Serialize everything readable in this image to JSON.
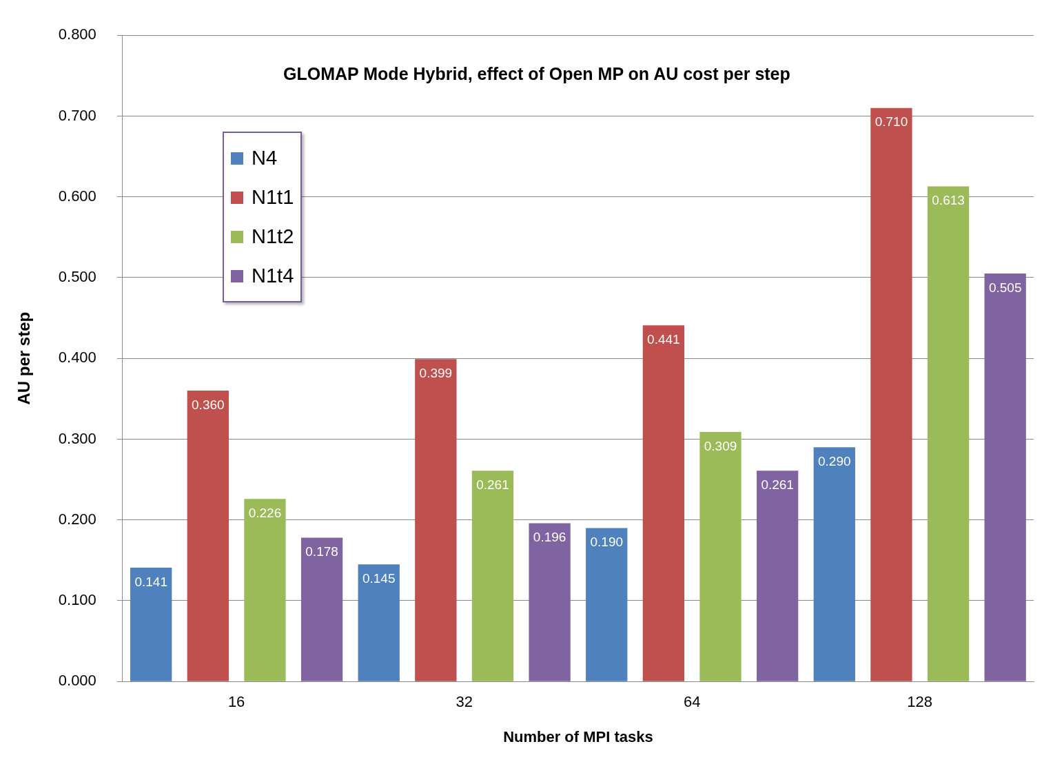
{
  "chart_data": {
    "type": "bar",
    "title": "GLOMAP Mode Hybrid, effect of Open MP on AU cost per step",
    "xlabel": "Number of MPI tasks",
    "ylabel": "AU per step",
    "categories": [
      "16",
      "32",
      "64",
      "128"
    ],
    "series": [
      {
        "name": "N4",
        "color": "#4f81bd",
        "values": [
          0.141,
          0.145,
          0.19,
          0.29
        ],
        "value_labels": [
          "0.141",
          "0.145",
          "0.190",
          "0.290"
        ]
      },
      {
        "name": "N1t1",
        "color": "#c0504d",
        "values": [
          0.36,
          0.399,
          0.441,
          0.71
        ],
        "value_labels": [
          "0.360",
          "0.399",
          "0.441",
          "0.710"
        ]
      },
      {
        "name": "N1t2",
        "color": "#9bbb59",
        "values": [
          0.226,
          0.261,
          0.309,
          0.613
        ],
        "value_labels": [
          "0.226",
          "0.261",
          "0.309",
          "0.613"
        ]
      },
      {
        "name": "N1t4",
        "color": "#8064a2",
        "values": [
          0.178,
          0.196,
          0.261,
          0.505
        ],
        "value_labels": [
          "0.178",
          "0.196",
          "0.261",
          "0.505"
        ]
      }
    ],
    "ylim": [
      0,
      0.8
    ],
    "yticks": [
      {
        "value": 0,
        "label": "0.000"
      },
      {
        "value": 0.1,
        "label": "0.100"
      },
      {
        "value": 0.2,
        "label": "0.200"
      },
      {
        "value": 0.3,
        "label": "0.300"
      },
      {
        "value": 0.4,
        "label": "0.400"
      },
      {
        "value": 0.5,
        "label": "0.500"
      },
      {
        "value": 0.6,
        "label": "0.600"
      },
      {
        "value": 0.7,
        "label": "0.700"
      },
      {
        "value": 0.8,
        "label": "0.800"
      }
    ],
    "grid": "y",
    "legend": "top left"
  }
}
